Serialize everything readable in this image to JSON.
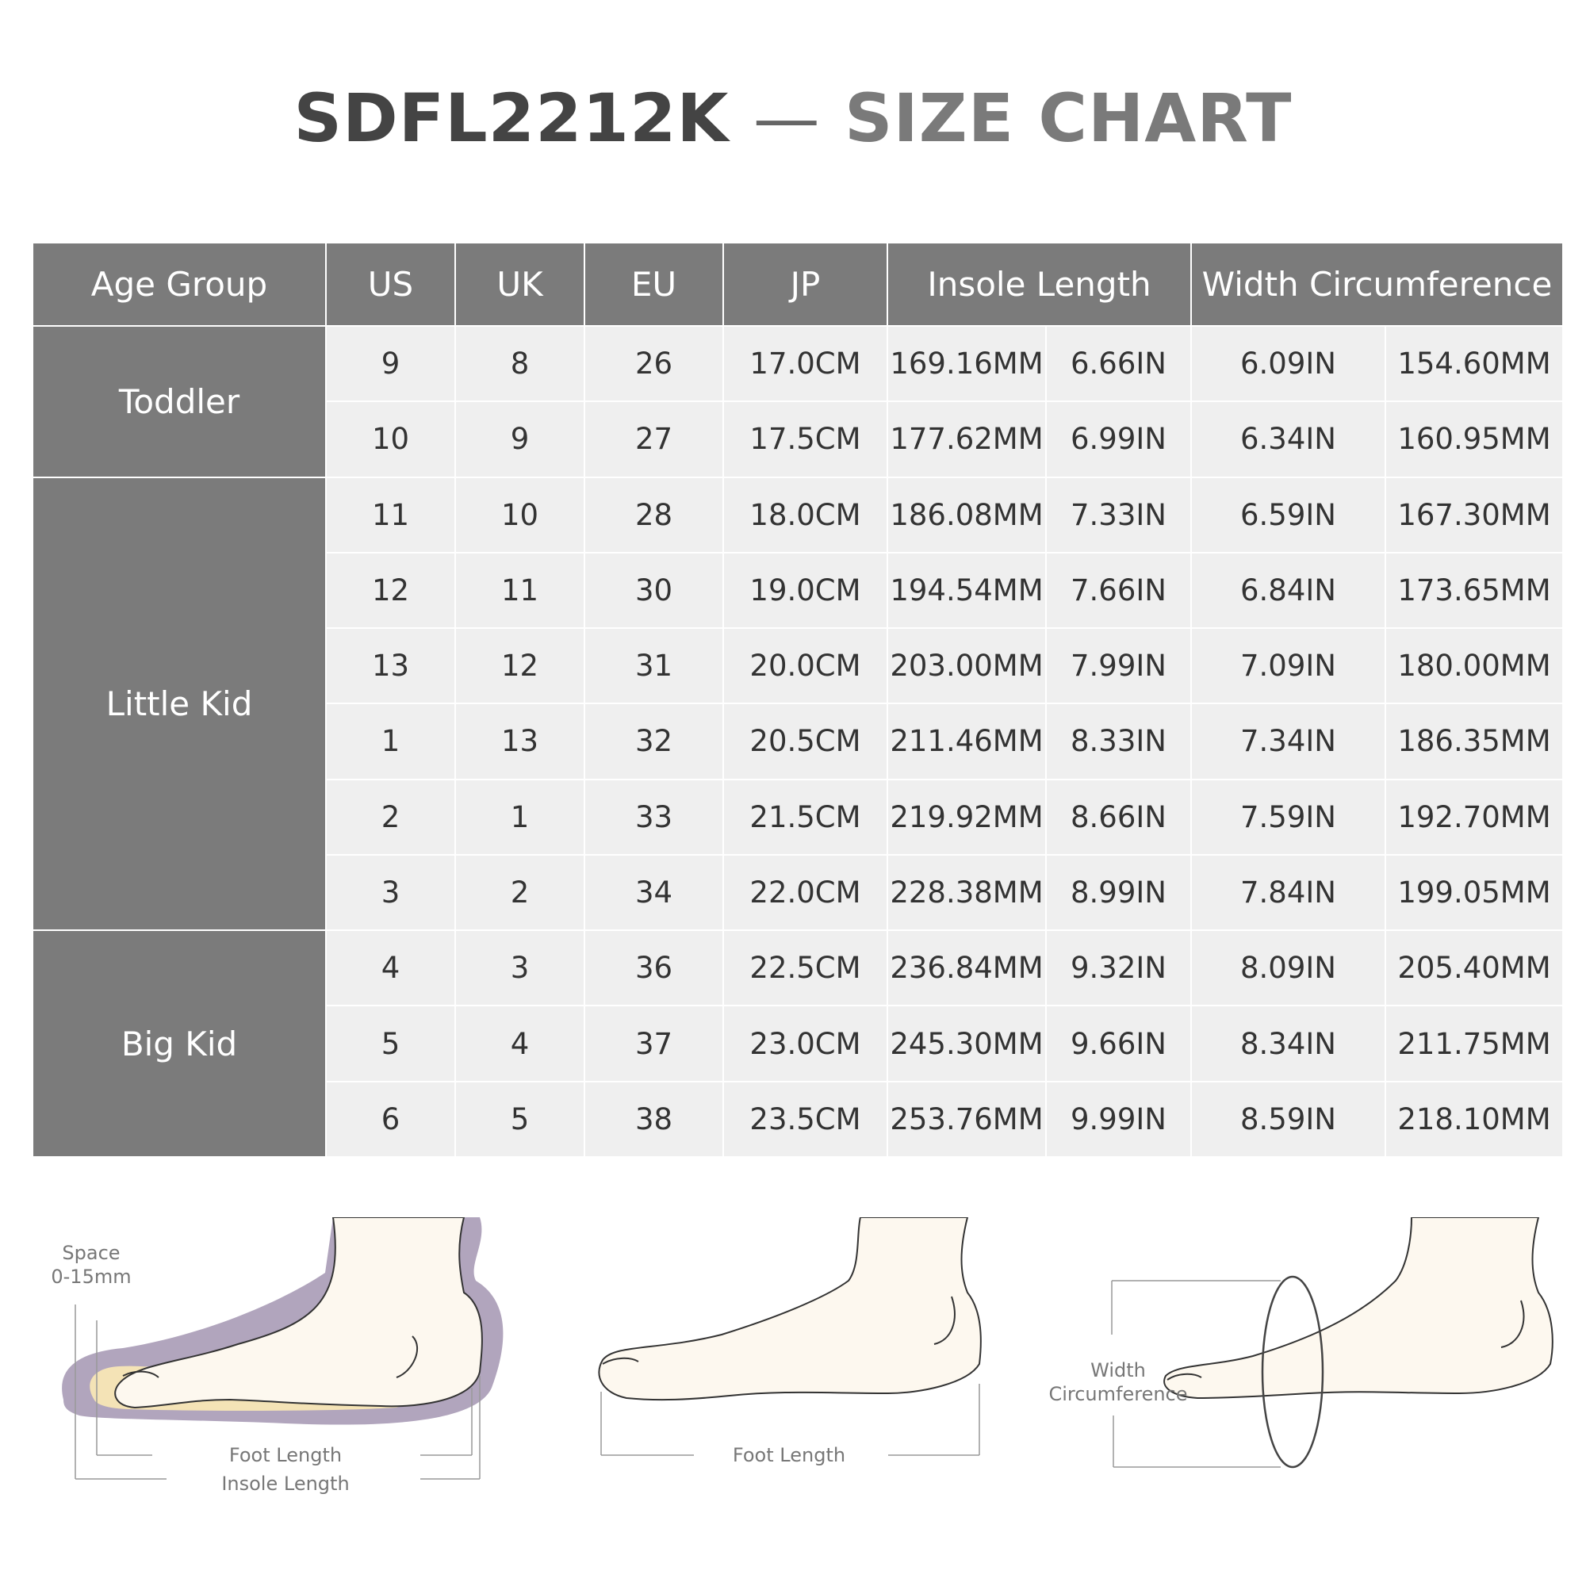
{
  "title": {
    "code": "SDFL2212K",
    "dash": "—",
    "label": "SIZE CHART"
  },
  "table": {
    "headers": {
      "age_group": "Age Group",
      "us": "US",
      "uk": "UK",
      "eu": "EU",
      "jp": "JP",
      "insole_length": "Insole Length",
      "width_circumference": "Width Circumference"
    },
    "groups": [
      "Toddler",
      "Little Kid",
      "Big Kid"
    ],
    "rows": [
      [
        "9",
        "8",
        "26",
        "17.0CM",
        "169.16MM",
        "6.66IN",
        "6.09IN",
        "154.60MM"
      ],
      [
        "10",
        "9",
        "27",
        "17.5CM",
        "177.62MM",
        "6.99IN",
        "6.34IN",
        "160.95MM"
      ],
      [
        "11",
        "10",
        "28",
        "18.0CM",
        "186.08MM",
        "7.33IN",
        "6.59IN",
        "167.30MM"
      ],
      [
        "12",
        "11",
        "30",
        "19.0CM",
        "194.54MM",
        "7.66IN",
        "6.84IN",
        "173.65MM"
      ],
      [
        "13",
        "12",
        "31",
        "20.0CM",
        "203.00MM",
        "7.99IN",
        "7.09IN",
        "180.00MM"
      ],
      [
        "1",
        "13",
        "32",
        "20.5CM",
        "211.46MM",
        "8.33IN",
        "7.34IN",
        "186.35MM"
      ],
      [
        "2",
        "1",
        "33",
        "21.5CM",
        "219.92MM",
        "8.66IN",
        "7.59IN",
        "192.70MM"
      ],
      [
        "3",
        "2",
        "34",
        "22.0CM",
        "228.38MM",
        "8.99IN",
        "7.84IN",
        "199.05MM"
      ],
      [
        "4",
        "3",
        "36",
        "22.5CM",
        "236.84MM",
        "9.32IN",
        "8.09IN",
        "205.40MM"
      ],
      [
        "5",
        "4",
        "37",
        "23.0CM",
        "245.30MM",
        "9.66IN",
        "8.34IN",
        "211.75MM"
      ],
      [
        "6",
        "5",
        "38",
        "23.5CM",
        "253.76MM",
        "9.99IN",
        "8.59IN",
        "218.10MM"
      ]
    ]
  },
  "diagrams": {
    "insole": {
      "space_label": "Space",
      "space_range": "0-15mm",
      "foot_length": "Foot Length",
      "insole_length": "Insole Length"
    },
    "foot": {
      "foot_length": "Foot Length"
    },
    "width": {
      "width_label": "Width",
      "circumference_label": "Circumference"
    }
  },
  "colors": {
    "header_bg": "#7b7b7b",
    "cell_bg": "#efefef",
    "insole_outline": "#b1a5bd",
    "insole_inner": "#f4e3b6",
    "skin": "#fdf8ef"
  }
}
